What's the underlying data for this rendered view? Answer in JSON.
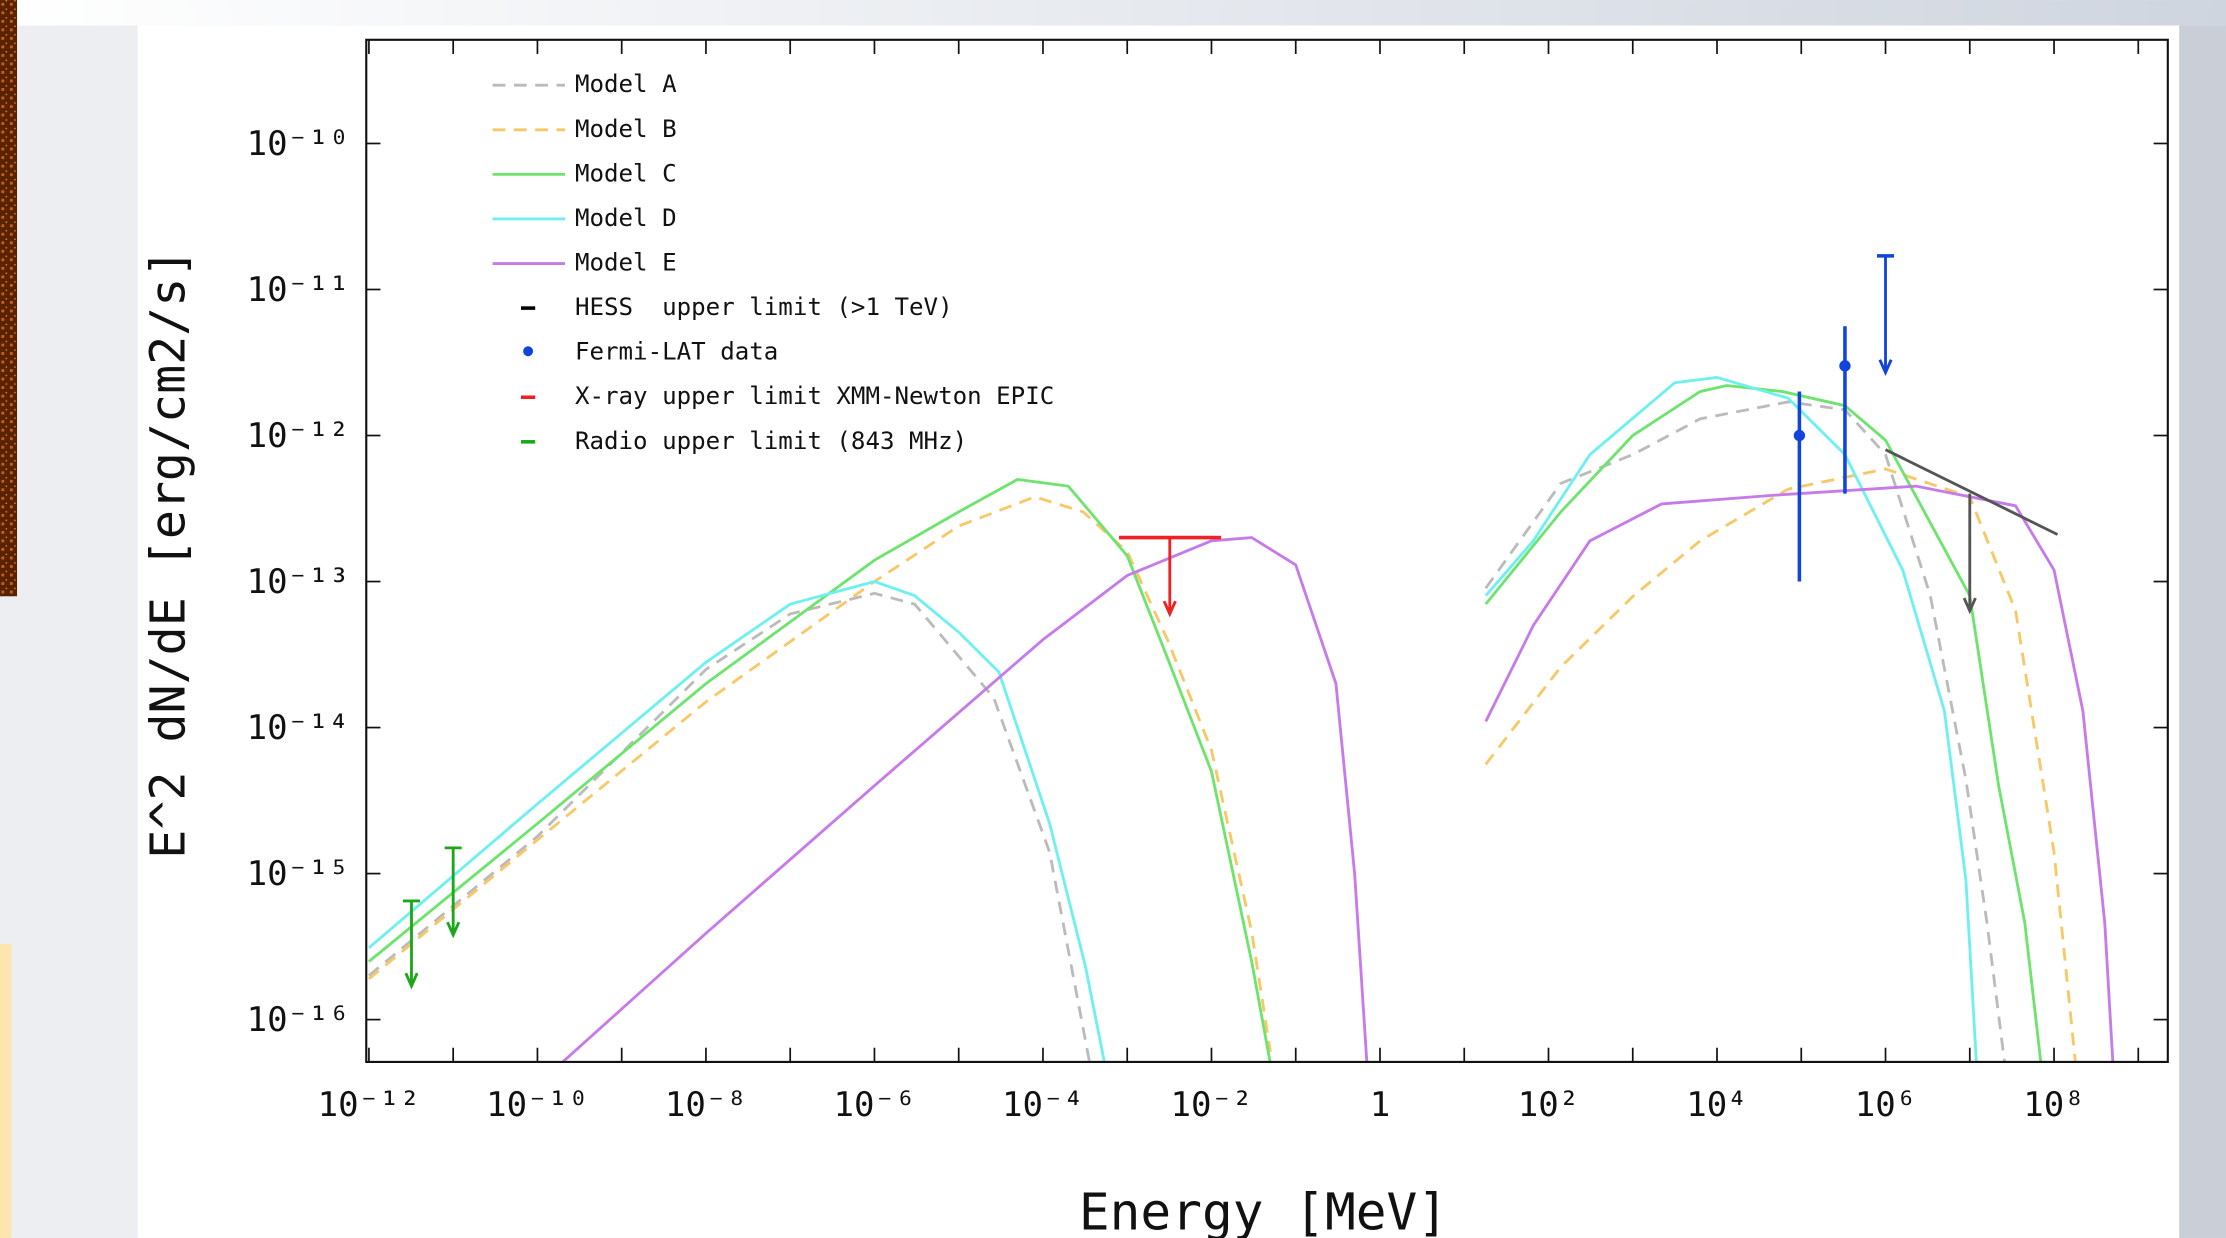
{
  "chart_data": {
    "type": "line",
    "xlabel": "Energy [MeV]",
    "ylabel": "E^2 dN/dE [erg/cm2/s]",
    "xscale": "log",
    "yscale": "log",
    "xlim": [
      9.3e-13,
      2240000000.0
    ],
    "ylim": [
      5.13e-17,
      5.13e-10
    ],
    "xticks": [
      {
        "value": 1e-12,
        "label": "10⁻¹²"
      },
      {
        "value": 1e-10,
        "label": "10⁻¹⁰"
      },
      {
        "value": 1e-08,
        "label": "10⁻⁸"
      },
      {
        "value": 1e-06,
        "label": "10⁻⁶"
      },
      {
        "value": 0.0001,
        "label": "10⁻⁴"
      },
      {
        "value": 0.01,
        "label": "10⁻²"
      },
      1,
      {
        "value": 100,
        "label": "10²"
      },
      {
        "value": 10000,
        "label": "10⁴"
      },
      {
        "value": 1000000,
        "label": "10⁶"
      },
      {
        "value": 100000000,
        "label": "10⁸"
      }
    ],
    "xticks_minor": [
      1e-11,
      1e-09,
      1e-07,
      1e-05,
      0.001,
      0.1,
      10,
      1000,
      100000,
      10000000,
      1000000000
    ],
    "yticks": [
      {
        "value": 1e-16,
        "label": "10⁻¹⁶"
      },
      {
        "value": 1e-15,
        "label": "10⁻¹⁵"
      },
      {
        "value": 1e-14,
        "label": "10⁻¹⁴"
      },
      {
        "value": 1e-13,
        "label": "10⁻¹³"
      },
      {
        "value": 1e-12,
        "label": "10⁻¹²"
      },
      {
        "value": 1e-11,
        "label": "10⁻¹¹"
      },
      {
        "value": 1e-10,
        "label": "10⁻¹⁰"
      }
    ],
    "legend": "upper left",
    "series": [
      {
        "name": "Model A",
        "color": "#bbbbbb",
        "dash": true,
        "x": [
          1e-12,
          1e-10,
          1e-08,
          1e-07,
          1e-06,
          3e-06,
          2.6e-05,
          0.00012,
          0.00036,
          null,
          18,
          140,
          1000,
          6300,
          70000,
          330000,
          1000000,
          3400000,
          9000000,
          16000000,
          26000000
        ],
        "values": [
          2e-16,
          1.8e-15,
          2.5e-14,
          6e-14,
          8.3e-14,
          7e-14,
          1.6e-14,
          1.4e-15,
          5e-17,
          null,
          9e-14,
          4.7e-13,
          7.4e-13,
          1.3e-12,
          1.7e-12,
          1.5e-12,
          7.4e-13,
          8e-14,
          4.4e-15,
          4.6e-16,
          5e-17
        ]
      },
      {
        "name": "Model B",
        "color": "#f8c766",
        "dash": true,
        "x": [
          1e-12,
          1e-10,
          1e-08,
          1e-06,
          1e-05,
          8e-05,
          0.0003,
          0.001,
          0.003,
          0.01,
          0.03,
          0.05,
          null,
          18,
          140,
          1000,
          6300,
          70000,
          1000000,
          10000000,
          35000000,
          100000000,
          180000000
        ],
        "values": [
          1.9e-16,
          1.7e-15,
          1.5e-14,
          1e-13,
          2.4e-13,
          3.8e-13,
          3e-13,
          1.6e-13,
          4e-14,
          7e-15,
          4e-16,
          6e-17,
          null,
          5.6e-15,
          2.6e-14,
          7.9e-14,
          1.9e-13,
          4.3e-13,
          5.9e-13,
          3.8e-13,
          6.3e-14,
          1.4e-15,
          5e-17
        ]
      },
      {
        "name": "Model C",
        "color": "#6ee36e",
        "dash": false,
        "x": [
          1e-12,
          1e-10,
          1e-08,
          1e-06,
          1e-05,
          5e-05,
          0.0002,
          0.001,
          0.003,
          0.01,
          0.03,
          0.05,
          null,
          18,
          140,
          1000,
          6300,
          13000,
          60000,
          330000,
          1000000,
          10000000,
          22000000,
          45000000,
          70000000
        ],
        "values": [
          2.5e-16,
          2.2e-15,
          2e-14,
          1.4e-13,
          3e-13,
          5e-13,
          4.5e-13,
          1.5e-13,
          3e-14,
          5e-15,
          2.5e-16,
          5e-17,
          null,
          7e-14,
          3e-13,
          1e-12,
          2e-12,
          2.2e-12,
          2e-12,
          1.6e-12,
          9.3e-13,
          8e-14,
          4e-15,
          4.6e-16,
          5e-17
        ]
      },
      {
        "name": "Model D",
        "color": "#6ff0f0",
        "dash": false,
        "x": [
          1e-12,
          1e-10,
          1e-08,
          1e-07,
          1e-06,
          3e-06,
          1e-05,
          3e-05,
          0.00012,
          0.00032,
          0.00054,
          null,
          18,
          66,
          310,
          3160,
          10000,
          70000,
          330000,
          1600000,
          5000000,
          9000000,
          12000000
        ],
        "values": [
          3.1e-16,
          3e-15,
          2.8e-14,
          7e-14,
          1e-13,
          8e-14,
          4.5e-14,
          2.4e-14,
          2.2e-15,
          2.3e-16,
          5e-17,
          null,
          8e-14,
          1.9e-13,
          7.4e-13,
          2.3e-12,
          2.5e-12,
          1.8e-12,
          7.4e-13,
          1.2e-13,
          1.3e-14,
          9e-16,
          5e-17
        ]
      },
      {
        "name": "Model E",
        "color": "#c67be8",
        "dash": false,
        "x": [
          1.9e-10,
          1e-08,
          1e-06,
          0.0001,
          0.001,
          0.01,
          0.03,
          0.1,
          0.3,
          0.5,
          0.7,
          null,
          18,
          66,
          310,
          2200,
          47000,
          2300000,
          35000000,
          100000000,
          220000000,
          400000000,
          500000000
        ],
        "values": [
          5e-17,
          3.9e-16,
          4e-15,
          4e-14,
          1.1e-13,
          1.9e-13,
          2e-13,
          1.3e-13,
          2e-14,
          1e-15,
          5e-17,
          null,
          1.1e-14,
          5e-14,
          1.9e-13,
          3.4e-13,
          3.9e-13,
          4.5e-13,
          3.3e-13,
          1.2e-13,
          1.3e-14,
          4.6e-16,
          5e-17
        ]
      }
    ],
    "markers": [
      {
        "name": "HESS  upper limit (>1 TeV)",
        "color": "#555555",
        "kind": "limit_line",
        "x": [
          1000000,
          110000000
        ],
        "values": [
          8e-13,
          2.1e-13
        ],
        "arrow_x": [
          10000000
        ],
        "arrow_from": [
          4e-13
        ],
        "arrow_to": [
          6.3e-14
        ]
      },
      {
        "name": "Fermi-LAT data",
        "color": "#1144dd",
        "kind": "point",
        "x": [
          95000,
          330000
        ],
        "values": [
          1e-12,
          3e-12
        ],
        "y_low": [
          1e-13,
          4e-13
        ],
        "y_high": [
          2e-12,
          5.6e-12
        ],
        "limit_x": [
          1000000
        ],
        "limit_values": [
          1.7e-11
        ],
        "limit_arrow_to": [
          2.7e-12
        ]
      },
      {
        "name": "X-ray upper limit XMM-Newton EPIC",
        "color": "#ee2222",
        "kind": "upper_limit",
        "x": [
          0.0032
        ],
        "values": [
          2e-13
        ],
        "arrow_to": [
          6e-14
        ],
        "bar_x": [
          0.0008,
          0.013
        ]
      },
      {
        "name": "Radio upper limit (843 MHz)",
        "color": "#1aa81a",
        "kind": "upper_limit",
        "x": [
          3.2e-12,
          1e-11
        ],
        "values": [
          6.5e-16,
          1.5e-15
        ],
        "arrow_to": [
          1.7e-16,
          3.8e-16
        ]
      }
    ]
  }
}
